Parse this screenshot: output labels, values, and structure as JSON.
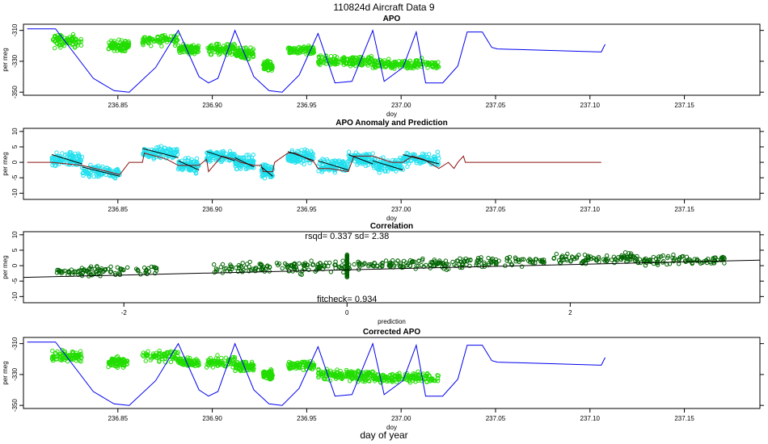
{
  "figure_title": "110824d   Aircraft Data 9",
  "bottom_label": "day of year",
  "colors": {
    "model_line": "#0000ee",
    "apo_points": "#22dd00",
    "anomaly_points": "#22e0ee",
    "anomaly_line": "#8b1010",
    "fit_line": "#000000",
    "corr_points": "#006400"
  },
  "chart_data": [
    {
      "id": "apo",
      "type": "scatter",
      "title": "APO",
      "xlabel": "doy",
      "ylabel": "per meg",
      "xlim": [
        236.8,
        237.19
      ],
      "ylim": [
        -352,
        -306
      ],
      "ylim_note": "axis drawn reversed (-310 at top, -350 at bottom)",
      "xticks": [
        "236.85",
        "236.90",
        "236.95",
        "237.00",
        "237.05",
        "237.10",
        "237.15"
      ],
      "yticks": [
        "-310",
        "-330",
        "-350"
      ],
      "series": [
        {
          "name": "model",
          "style": "line",
          "x": [
            236.802,
            236.817,
            236.837,
            236.848,
            236.856,
            236.87,
            236.882,
            236.893,
            236.898,
            236.903,
            236.912,
            236.922,
            236.93,
            236.937,
            236.946,
            236.956,
            236.965,
            236.974,
            236.985,
            236.991,
            237.001,
            237.008,
            237.013,
            237.022,
            237.03,
            237.035,
            237.043,
            237.048,
            237.051,
            237.106,
            237.108
          ],
          "y": [
            -309,
            -309,
            -341,
            -349,
            -350,
            -334,
            -310,
            -340,
            -344,
            -341,
            -310,
            -340,
            -349,
            -350,
            -339,
            -312,
            -344,
            -343,
            -310,
            -343,
            -334,
            -311,
            -344,
            -344,
            -333,
            -311,
            -311,
            -321,
            -322,
            -324,
            -319
          ]
        },
        {
          "name": "observed",
          "style": "points",
          "clusters": [
            {
              "x": [
                236.815,
                236.831
              ],
              "center": -317,
              "spread": 6
            },
            {
              "x": [
                236.845,
                236.856
              ],
              "center": -320,
              "spread": 5
            },
            {
              "x": [
                236.863,
                236.882
              ],
              "center": -316,
              "spread": 5
            },
            {
              "x": [
                236.882,
                236.893
              ],
              "center": -322,
              "spread": 4
            },
            {
              "x": [
                236.897,
                236.912
              ],
              "center": -322,
              "spread": 5
            },
            {
              "x": [
                236.912,
                236.922
              ],
              "center": -325,
              "spread": 5
            },
            {
              "x": [
                236.927,
                236.932
              ],
              "center": -333,
              "spread": 4
            },
            {
              "x": [
                236.94,
                236.954
              ],
              "center": -323,
              "spread": 4
            },
            {
              "x": [
                236.956,
                236.972
              ],
              "center": -330,
              "spread": 5
            },
            {
              "x": [
                236.972,
                236.985
              ],
              "center": -330,
              "spread": 5
            },
            {
              "x": [
                236.985,
                237.001
              ],
              "center": -332,
              "spread": 4
            },
            {
              "x": [
                237.001,
                237.02
              ],
              "center": -332,
              "spread": 5
            }
          ]
        }
      ]
    },
    {
      "id": "anomaly",
      "type": "scatter",
      "title": "APO Anomaly and Prediction",
      "xlabel": "doy",
      "ylabel": "per meg",
      "xlim": [
        236.8,
        237.19
      ],
      "ylim": [
        -12,
        11
      ],
      "xticks": [
        "236.85",
        "236.90",
        "236.95",
        "237.00",
        "237.05",
        "237.10",
        "237.15"
      ],
      "yticks": [
        "10",
        "5",
        "0",
        "-5",
        "-10"
      ],
      "series": [
        {
          "name": "prediction",
          "style": "line",
          "x": [
            236.802,
            236.815,
            236.831,
            236.845,
            236.851,
            236.856,
            236.863,
            236.864,
            236.87,
            236.876,
            236.882,
            236.886,
            236.893,
            236.897,
            236.898,
            236.905,
            236.912,
            236.915,
            236.922,
            236.926,
            236.927,
            236.932,
            236.933,
            236.94,
            236.944,
            236.954,
            236.956,
            236.962,
            236.972,
            236.975,
            236.985,
            236.995,
            237.001,
            237.006,
            237.012,
            237.02,
            237.025,
            237.028,
            237.03,
            237.033,
            237.034,
            237.04,
            237.045,
            237.106
          ],
          "y": [
            0,
            0,
            -1,
            -3,
            -4,
            0,
            0,
            3,
            2,
            1,
            -1,
            -1,
            -1,
            1,
            -3,
            2,
            1,
            0,
            -1,
            -1,
            -3,
            -3,
            0,
            3,
            3,
            0,
            -2,
            -2,
            -3,
            2,
            2,
            0,
            0,
            2,
            1,
            -2,
            0,
            -2,
            0,
            2,
            0,
            0,
            0,
            0
          ],
          "color": "#8b1010"
        },
        {
          "name": "anomaly",
          "style": "points",
          "clusters": [
            {
              "x": [
                236.815,
                236.831
              ],
              "center": 1,
              "spread": 3
            },
            {
              "x": [
                236.831,
                236.851
              ],
              "center": -3,
              "spread": 3
            },
            {
              "x": [
                236.863,
                236.882
              ],
              "center": 3,
              "spread": 3
            },
            {
              "x": [
                236.882,
                236.893
              ],
              "center": -1,
              "spread": 3
            },
            {
              "x": [
                236.897,
                236.912
              ],
              "center": 2,
              "spread": 3
            },
            {
              "x": [
                236.912,
                236.922
              ],
              "center": 0,
              "spread": 3
            },
            {
              "x": [
                236.926,
                236.932
              ],
              "center": -3,
              "spread": 3
            },
            {
              "x": [
                236.94,
                236.954
              ],
              "center": 2,
              "spread": 3
            },
            {
              "x": [
                236.956,
                236.972
              ],
              "center": -1,
              "spread": 3
            },
            {
              "x": [
                236.972,
                236.985
              ],
              "center": 1,
              "spread": 3
            },
            {
              "x": [
                236.985,
                237.001
              ],
              "center": -1,
              "spread": 3
            },
            {
              "x": [
                237.001,
                237.02
              ],
              "center": 1,
              "spread": 3
            }
          ]
        }
      ]
    },
    {
      "id": "correlation",
      "type": "scatter",
      "title": "Correlation",
      "xlabel": "prediction",
      "ylabel": "per meg",
      "xlim": [
        -2.9,
        3.7
      ],
      "ylim": [
        -12,
        11
      ],
      "xticks": [
        "-2",
        "0",
        "2"
      ],
      "yticks": [
        "10",
        "5",
        "0",
        "-5",
        "-10"
      ],
      "annotation_top": "rsqd= 0.337 sd= 2.38",
      "annotation_bottom": "fitcheck= 0.934",
      "fit_line": {
        "x": [
          -2.9,
          3.7
        ],
        "y": [
          -3.8,
          1.8
        ]
      },
      "point_clusters": [
        {
          "x": [
            -2.6,
            -1.7
          ],
          "slope": 0.8,
          "spread": 2.2
        },
        {
          "x": [
            -1.2,
            0.0
          ],
          "slope": 0.8,
          "spread": 3.0
        },
        {
          "x": 0.0,
          "vertical": true,
          "range": [
            -3.8,
            3.8
          ]
        },
        {
          "x": [
            0.0,
            2.6
          ],
          "slope": 1.0,
          "spread": 2.4
        },
        {
          "x": [
            2.6,
            3.4
          ],
          "slope": 0.6,
          "spread": 2.0
        }
      ]
    },
    {
      "id": "corrected",
      "type": "scatter",
      "title": "Corrected APO",
      "xlabel": "doy",
      "ylabel": "per meg",
      "xlim": [
        236.8,
        237.19
      ],
      "ylim": [
        -352,
        -306
      ],
      "ylim_note": "axis drawn reversed (-310 at top, -350 at bottom)",
      "xticks": [
        "236.85",
        "236.90",
        "236.95",
        "237.00",
        "237.05",
        "237.10",
        "237.15"
      ],
      "yticks": [
        "-310",
        "-330",
        "-350"
      ],
      "series": [
        {
          "name": "model",
          "style": "line",
          "same_as": "apo.model"
        },
        {
          "name": "corrected",
          "style": "points",
          "clusters": [
            {
              "x": [
                236.815,
                236.831
              ],
              "center": -318,
              "spread": 6
            },
            {
              "x": [
                236.845,
                236.856
              ],
              "center": -322,
              "spread": 5
            },
            {
              "x": [
                236.863,
                236.882
              ],
              "center": -318,
              "spread": 5
            },
            {
              "x": [
                236.882,
                236.893
              ],
              "center": -322,
              "spread": 4
            },
            {
              "x": [
                236.897,
                236.912
              ],
              "center": -322,
              "spread": 5
            },
            {
              "x": [
                236.912,
                236.922
              ],
              "center": -325,
              "spread": 5
            },
            {
              "x": [
                236.927,
                236.932
              ],
              "center": -330,
              "spread": 4
            },
            {
              "x": [
                236.94,
                236.954
              ],
              "center": -324,
              "spread": 4
            },
            {
              "x": [
                236.956,
                236.972
              ],
              "center": -330,
              "spread": 5
            },
            {
              "x": [
                236.972,
                236.985
              ],
              "center": -331,
              "spread": 5
            },
            {
              "x": [
                236.985,
                237.001
              ],
              "center": -332,
              "spread": 4
            },
            {
              "x": [
                237.001,
                237.02
              ],
              "center": -332,
              "spread": 5
            }
          ]
        }
      ]
    }
  ]
}
